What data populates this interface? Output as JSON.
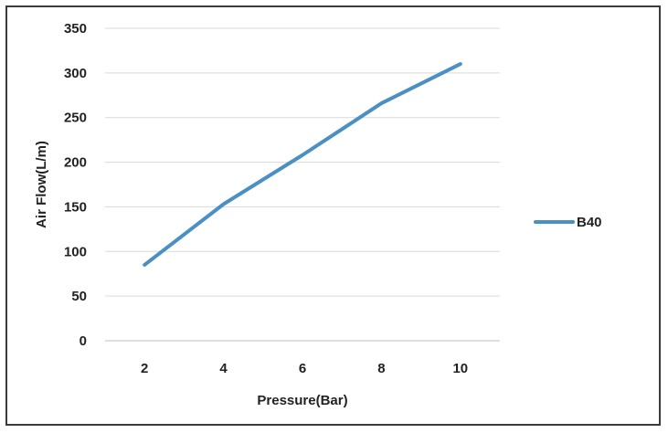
{
  "chart_data": {
    "type": "line",
    "title": "",
    "xlabel": "Pressure(Bar)",
    "ylabel": "Air Flow(L/m)",
    "x": [
      2,
      4,
      6,
      8,
      10
    ],
    "series": [
      {
        "name": "B40",
        "values": [
          85,
          153,
          208,
          266,
          310
        ],
        "color": "#4a90c4"
      }
    ],
    "ylim": [
      0,
      350
    ],
    "yticks": [
      0,
      50,
      100,
      150,
      200,
      250,
      300,
      350
    ],
    "grid": true,
    "legend": "right"
  }
}
